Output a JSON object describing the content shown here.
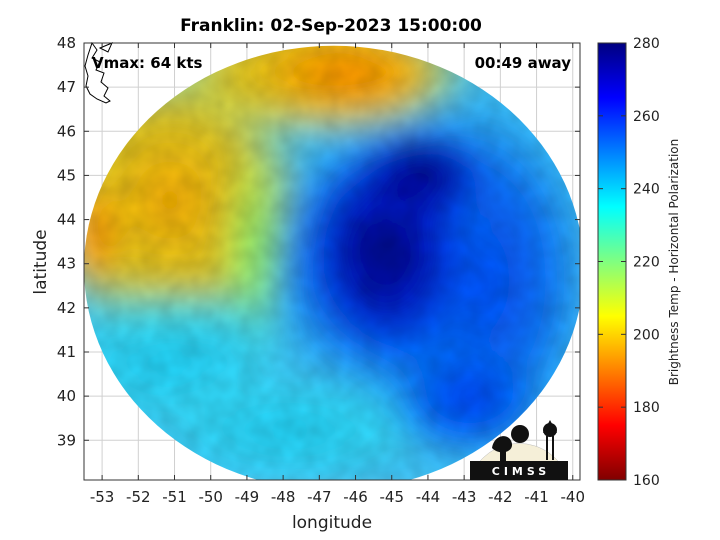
{
  "title": "Franklin: 02-Sep-2023 15:00:00",
  "annotations": {
    "vmax": "Vmax: 64 kts",
    "away": "00:49 away"
  },
  "logo_text": "CIMSS",
  "colors": {
    "colormap": [
      "#800000",
      "#ff0000",
      "#ff8000",
      "#ffff00",
      "#80ff80",
      "#00ffff",
      "#0080ff",
      "#0000ff",
      "#000080"
    ],
    "grid": "#d0d0d0",
    "axes": "#333333",
    "logo_bg": "#f5efd8",
    "logo_fg": "#111111"
  },
  "chart_data": {
    "type": "heatmap",
    "title": "Franklin: 02-Sep-2023 15:00:00",
    "xlabel": "longitude",
    "ylabel": "latitude",
    "xlim": [
      -53.5,
      -39.8
    ],
    "ylim": [
      38.1,
      48
    ],
    "x_ticks": [
      -53,
      -52,
      -51,
      -50,
      -49,
      -48,
      -47,
      -46,
      -45,
      -44,
      -43,
      -42,
      -41,
      -40
    ],
    "y_ticks": [
      39,
      40,
      41,
      42,
      43,
      44,
      45,
      46,
      47,
      48
    ],
    "grid": true,
    "colorbar": {
      "label": "Brightness Temp - Horizontal Polarization",
      "range": [
        160,
        280
      ],
      "ticks": [
        160,
        180,
        200,
        220,
        240,
        260,
        280
      ]
    },
    "swath_center": [
      -46.6,
      42.9
    ],
    "swath_radius_deg_lon": 6.9,
    "field_regions": [
      {
        "label": "cold core (deep blue)",
        "center": [
          -45.2,
          43.3
        ],
        "value": 268
      },
      {
        "label": "northwest warm region",
        "center": [
          -50.5,
          45.0
        ],
        "value": 205
      },
      {
        "label": "northern warm band",
        "center": [
          -46.5,
          47.0
        ],
        "value": 195
      },
      {
        "label": "southwest cyan region",
        "center": [
          -50.0,
          40.5
        ],
        "value": 232
      },
      {
        "label": "southern band",
        "center": [
          -46.0,
          39.2
        ],
        "value": 238
      },
      {
        "label": "eastern band",
        "center": [
          -41.5,
          43.0
        ],
        "value": 255
      }
    ]
  }
}
